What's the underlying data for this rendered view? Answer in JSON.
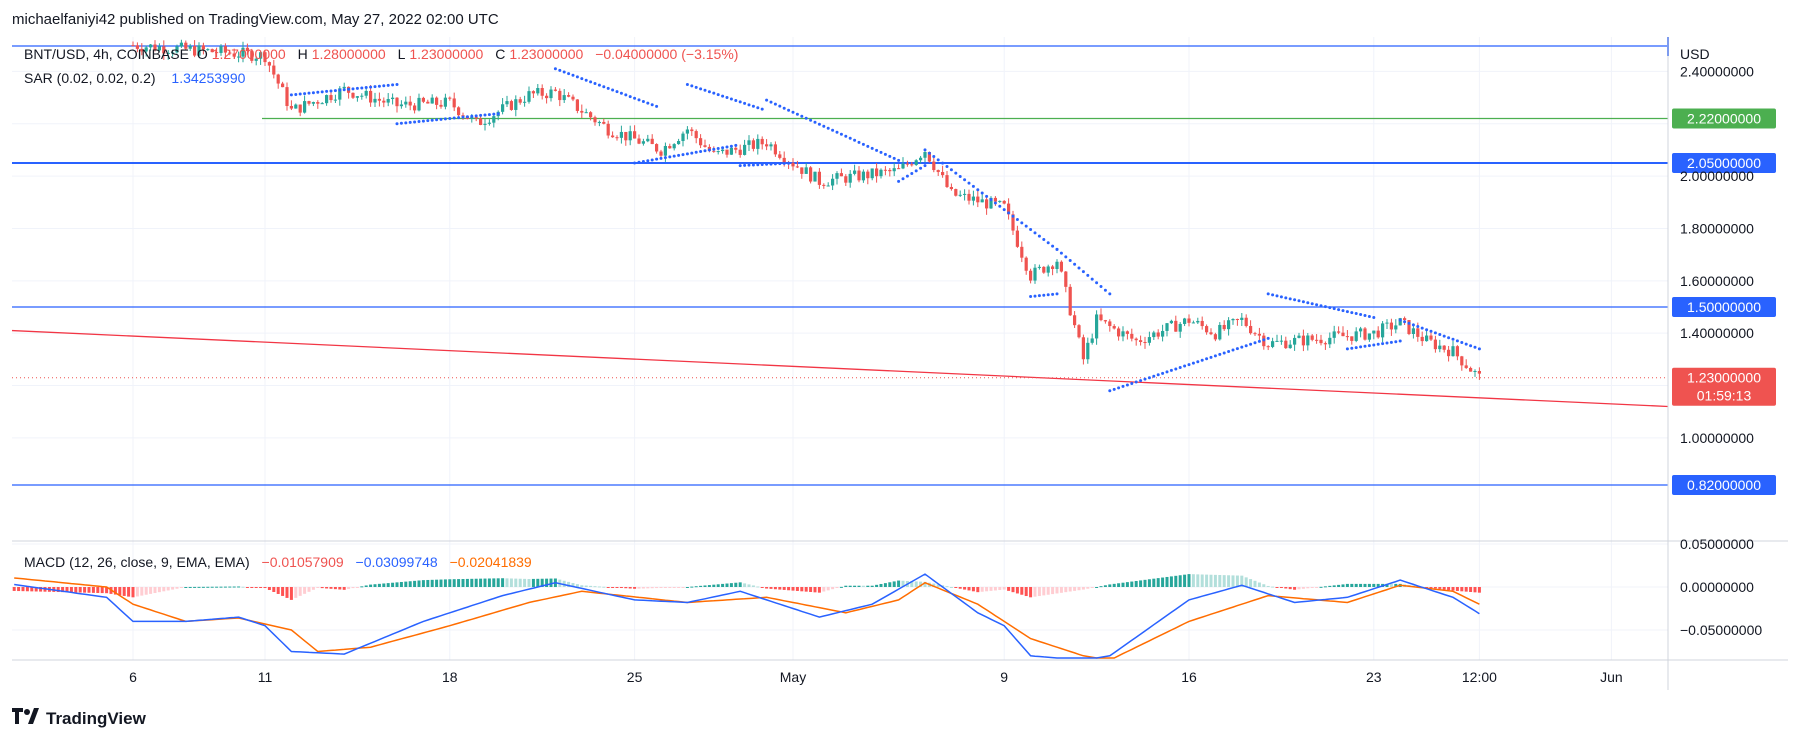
{
  "header": {
    "publisher": "michaelfaniyi42 published on TradingView.com, May 27, 2022 02:00 UTC"
  },
  "legend": {
    "symbol": "BNT/USD, 4h, COINBASE",
    "o_label": "O",
    "o_value": "1.27000000",
    "h_label": "H",
    "h_value": "1.28000000",
    "l_label": "L",
    "l_value": "1.23000000",
    "c_label": "C",
    "c_value": "1.23000000",
    "change": "−0.04000000 (−3.15%)",
    "sar_label": "SAR (0.02, 0.02, 0.2)",
    "sar_value": "1.34253990",
    "macd_label": "MACD (12, 26, close, 9, EMA, EMA)",
    "macd_hist": "−0.01057909",
    "macd_line": "−0.03099748",
    "macd_signal": "−0.02041839"
  },
  "footer": {
    "brand": "TradingView",
    "logo_icon": "tradingview-logo-icon"
  },
  "colors": {
    "up": "#26a69a",
    "down": "#ef5350",
    "sar": "#2962ff",
    "hline": "#2962ff",
    "green_level": "#4caf50",
    "trend": "#f23645",
    "macd": "#2962ff",
    "signal": "#ff6d00",
    "hist_up_strong": "#26a69a",
    "hist_up_weak": "#b2dfdb",
    "hist_down_strong": "#ff5252",
    "hist_down_weak": "#ffcdd2"
  },
  "chart_data": [
    {
      "type": "candlestick",
      "currency": "USD",
      "ylim": [
        0.8,
        2.5
      ],
      "y_ticks": [
        "2.40000000",
        "2.00000000",
        "1.80000000",
        "1.60000000",
        "1.40000000",
        "1.00000000"
      ],
      "x_ticks": [
        "6",
        "11",
        "18",
        "25",
        "May",
        "9",
        "16",
        "23",
        "12:00",
        "Jun"
      ],
      "horizontal_levels": [
        {
          "value": 2.22,
          "label": "2.22000000",
          "color": "#4caf50"
        },
        {
          "value": 2.05,
          "label": "2.05000000",
          "color": "#2962ff"
        },
        {
          "value": 1.5,
          "label": "1.50000000",
          "color": "#2962ff"
        },
        {
          "value": 0.82,
          "label": "0.82000000",
          "color": "#2962ff"
        }
      ],
      "last_price": {
        "label": "1.23000000",
        "countdown": "01:59:13"
      },
      "close_path_keypoints": [
        [
          "Apr 6",
          2.5
        ],
        [
          "Apr 11",
          2.46
        ],
        [
          "Apr 12",
          2.25
        ],
        [
          "Apr 14",
          2.33
        ],
        [
          "Apr 16",
          2.27
        ],
        [
          "Apr 18",
          2.28
        ],
        [
          "Apr 19",
          2.2
        ],
        [
          "Apr 21",
          2.31
        ],
        [
          "Apr 22",
          2.32
        ],
        [
          "Apr 24",
          2.18
        ],
        [
          "Apr 26",
          2.1
        ],
        [
          "Apr 27",
          2.18
        ],
        [
          "Apr 28",
          2.08
        ],
        [
          "Apr 30",
          2.13
        ],
        [
          "May 1",
          2.05
        ],
        [
          "May 2",
          1.98
        ],
        [
          "May 5",
          2.02
        ],
        [
          "May 6",
          2.1
        ],
        [
          "May 7",
          1.93
        ],
        [
          "May 9",
          1.88
        ],
        [
          "May 10",
          1.62
        ],
        [
          "May 11",
          1.68
        ],
        [
          "May 12",
          1.3
        ],
        [
          "May 12.5",
          1.45
        ],
        [
          "May 14",
          1.37
        ],
        [
          "May 16",
          1.45
        ],
        [
          "May 17",
          1.4
        ],
        [
          "May 18",
          1.45
        ],
        [
          "May 19",
          1.36
        ],
        [
          "May 21",
          1.38
        ],
        [
          "May 23",
          1.4
        ],
        [
          "May 24",
          1.44
        ],
        [
          "May 25",
          1.37
        ],
        [
          "May 26",
          1.33
        ],
        [
          "May 27",
          1.23
        ]
      ],
      "sar_segments": [
        {
          "from": "Apr 12",
          "to": "Apr 16",
          "start": 2.31,
          "end": 2.35
        },
        {
          "from": "Apr 16",
          "to": "Apr 20",
          "start": 2.2,
          "end": 2.24
        },
        {
          "from": "Apr 22",
          "to": "Apr 26",
          "start": 2.41,
          "end": 2.26
        },
        {
          "from": "Apr 25",
          "to": "Apr 29",
          "start": 2.05,
          "end": 2.12
        },
        {
          "from": "Apr 27",
          "to": "Apr 30",
          "start": 2.35,
          "end": 2.25
        },
        {
          "from": "Apr 29",
          "to": "May 1",
          "start": 2.04,
          "end": 2.05
        },
        {
          "from": "Apr 30",
          "to": "May 5",
          "start": 2.29,
          "end": 2.06
        },
        {
          "from": "May 5",
          "to": "May 6",
          "start": 1.98,
          "end": 2.04
        },
        {
          "from": "May 6",
          "to": "May 11",
          "start": 2.1,
          "end": 1.72
        },
        {
          "from": "May 10",
          "to": "May 11",
          "start": 1.54,
          "end": 1.55
        },
        {
          "from": "May 11",
          "to": "May 13",
          "start": 1.72,
          "end": 1.55
        },
        {
          "from": "May 13",
          "to": "May 19",
          "start": 1.18,
          "end": 1.38
        },
        {
          "from": "May 19",
          "to": "May 23",
          "start": 1.55,
          "end": 1.46
        },
        {
          "from": "May 22",
          "to": "May 24",
          "start": 1.34,
          "end": 1.37
        },
        {
          "from": "May 24",
          "to": "May 27",
          "start": 1.45,
          "end": 1.34
        }
      ],
      "trendline": {
        "from": [
          "Apr 1",
          1.41
        ],
        "to": [
          "Jun 4",
          1.12
        ]
      }
    },
    {
      "type": "macd",
      "ylim": [
        -0.085,
        0.05
      ],
      "y_ticks": [
        "0.05000000",
        "0.00000000",
        "−0.05000000"
      ],
      "macd_keypoints": [
        [
          "Apr 1",
          0.005
        ],
        [
          "Apr 5",
          -0.012
        ],
        [
          "Apr 6",
          -0.04
        ],
        [
          "Apr 8",
          -0.04
        ],
        [
          "Apr 10",
          -0.035
        ],
        [
          "Apr 11",
          -0.045
        ],
        [
          "Apr 12",
          -0.075
        ],
        [
          "Apr 14",
          -0.078
        ],
        [
          "Apr 17",
          -0.04
        ],
        [
          "Apr 20",
          -0.01
        ],
        [
          "Apr 22",
          0.005
        ],
        [
          "Apr 25",
          -0.015
        ],
        [
          "Apr 27",
          -0.018
        ],
        [
          "Apr 29",
          -0.005
        ],
        [
          "May 2",
          -0.035
        ],
        [
          "May 4",
          -0.02
        ],
        [
          "May 6",
          0.015
        ],
        [
          "May 8",
          -0.03
        ],
        [
          "May 9",
          -0.045
        ],
        [
          "May 10",
          -0.08
        ],
        [
          "May 12",
          -0.085
        ],
        [
          "May 13",
          -0.08
        ],
        [
          "May 16",
          -0.015
        ],
        [
          "May 18",
          0.002
        ],
        [
          "May 20",
          -0.018
        ],
        [
          "May 22",
          -0.012
        ],
        [
          "May 24",
          0.008
        ],
        [
          "May 26",
          -0.012
        ],
        [
          "May 27",
          -0.031
        ]
      ],
      "signal_keypoints": [
        [
          "Apr 1",
          0.012
        ],
        [
          "Apr 5",
          0.0
        ],
        [
          "Apr 6",
          -0.02
        ],
        [
          "Apr 8",
          -0.04
        ],
        [
          "Apr 10",
          -0.036
        ],
        [
          "Apr 12",
          -0.05
        ],
        [
          "Apr 13",
          -0.075
        ],
        [
          "Apr 15",
          -0.07
        ],
        [
          "Apr 18",
          -0.045
        ],
        [
          "Apr 21",
          -0.018
        ],
        [
          "Apr 23",
          -0.005
        ],
        [
          "Apr 27",
          -0.018
        ],
        [
          "Apr 30",
          -0.012
        ],
        [
          "May 3",
          -0.03
        ],
        [
          "May 5",
          -0.015
        ],
        [
          "May 6",
          0.005
        ],
        [
          "May 8",
          -0.02
        ],
        [
          "May 10",
          -0.06
        ],
        [
          "May 12",
          -0.08
        ],
        [
          "May 13",
          -0.085
        ],
        [
          "May 16",
          -0.04
        ],
        [
          "May 19",
          -0.01
        ],
        [
          "May 22",
          -0.018
        ],
        [
          "May 24",
          0.002
        ],
        [
          "May 26",
          -0.005
        ],
        [
          "May 27",
          -0.02
        ]
      ]
    }
  ]
}
